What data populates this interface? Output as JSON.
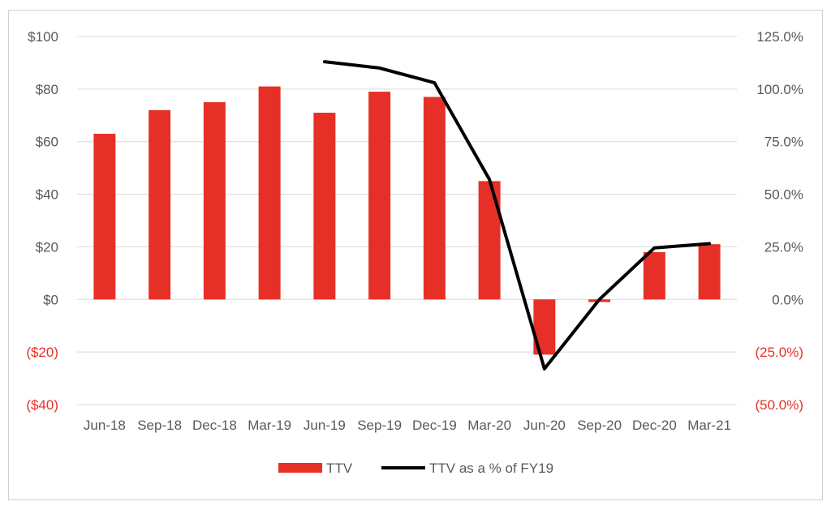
{
  "chart_data": {
    "type": "bar",
    "categories": [
      "Jun-18",
      "Sep-18",
      "Dec-18",
      "Mar-19",
      "Jun-19",
      "Sep-19",
      "Dec-19",
      "Mar-20",
      "Jun-20",
      "Sep-20",
      "Dec-20",
      "Mar-21"
    ],
    "series": [
      {
        "name": "TTV",
        "type": "bar",
        "axis": "left",
        "values": [
          63,
          72,
          75,
          81,
          71,
          79,
          77,
          45,
          -21,
          -1,
          18,
          21
        ]
      },
      {
        "name": "TTV as a % of FY19",
        "type": "line",
        "axis": "right",
        "values": [
          null,
          null,
          null,
          null,
          113,
          110,
          103,
          57,
          -33,
          0,
          24.5,
          26.5
        ]
      }
    ],
    "left_axis": {
      "ylim": [
        -40,
        100
      ],
      "ticks": [
        100,
        80,
        60,
        40,
        20,
        0,
        -20,
        -40
      ],
      "tick_labels": [
        "$100",
        "$80",
        "$60",
        "$40",
        "$20",
        "$0",
        "($20)",
        "($40)"
      ]
    },
    "right_axis": {
      "ylim": [
        -50,
        125
      ],
      "ticks": [
        125,
        100,
        75,
        50,
        25,
        0,
        -25,
        -50
      ],
      "tick_labels": [
        "125.0%",
        "100.0%",
        "75.0%",
        "50.0%",
        "25.0%",
        "0.0%",
        "(25.0%)",
        "(50.0%)"
      ]
    },
    "legend": {
      "position": "bottom",
      "items": [
        "TTV",
        "TTV as a % of FY19"
      ]
    },
    "grid": true,
    "colors": {
      "bar": "#e63027",
      "line": "#000000",
      "negative_label": "#e63027",
      "label": "#595959",
      "grid": "#d9d9d9"
    }
  }
}
